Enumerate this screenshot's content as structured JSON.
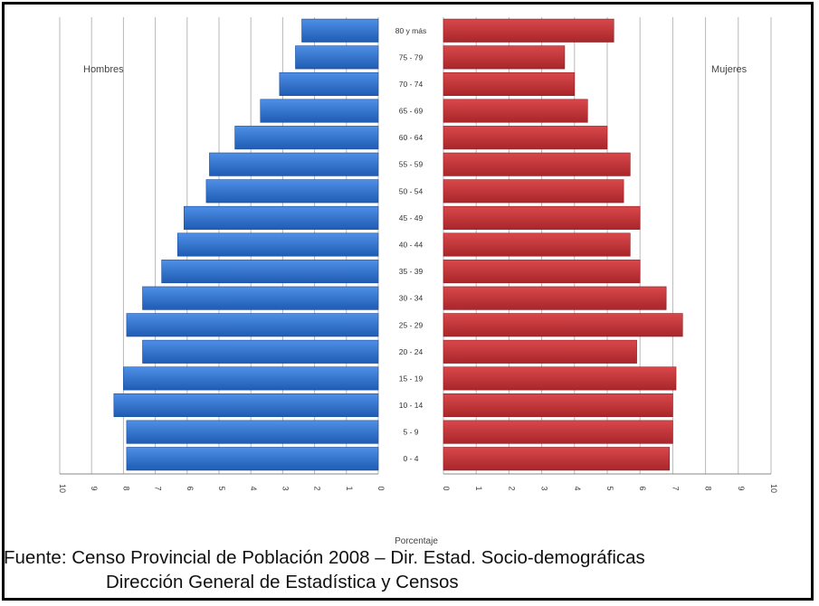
{
  "chart_data": {
    "type": "bar",
    "subtype": "population-pyramid",
    "categories": [
      "0 - 4",
      "5 - 9",
      "10 - 14",
      "15 - 19",
      "20 - 24",
      "25 - 29",
      "30 - 34",
      "35 - 39",
      "40 - 44",
      "45 - 49",
      "50 - 54",
      "55 - 59",
      "60 - 64",
      "65 - 69",
      "70 - 74",
      "75 - 79",
      "80 y más"
    ],
    "series": [
      {
        "name": "Hombres",
        "side": "left",
        "color": "#2e6fcd",
        "values": [
          7.9,
          7.9,
          8.3,
          8.0,
          7.4,
          7.9,
          7.4,
          6.8,
          6.3,
          6.1,
          5.4,
          5.3,
          4.5,
          3.7,
          3.1,
          2.6,
          2.4
        ]
      },
      {
        "name": "Mujeres",
        "side": "right",
        "color": "#c43a3d",
        "values": [
          6.9,
          7.0,
          7.0,
          7.1,
          5.9,
          7.3,
          6.8,
          6.0,
          5.7,
          6.0,
          5.5,
          5.7,
          5.0,
          4.4,
          4.0,
          3.7,
          5.2
        ]
      }
    ],
    "xlabel": "Porcentaje",
    "xlim": [
      0,
      10
    ],
    "xticks": [
      "10",
      "9",
      "8",
      "7",
      "6",
      "5",
      "4",
      "3",
      "2",
      "1",
      "0"
    ],
    "xticks_right": [
      "0",
      "1",
      "2",
      "3",
      "4",
      "5",
      "6",
      "7",
      "8",
      "9",
      "10"
    ],
    "grid": "vertical"
  },
  "legend": {
    "left_label": "Hombres",
    "right_label": "Mujeres"
  },
  "source": {
    "line1": "Fuente: Censo Provincial de Población 2008 – Dir. Estad. Socio-demográficas",
    "line2": "Dirección General de Estadística y Censos"
  }
}
